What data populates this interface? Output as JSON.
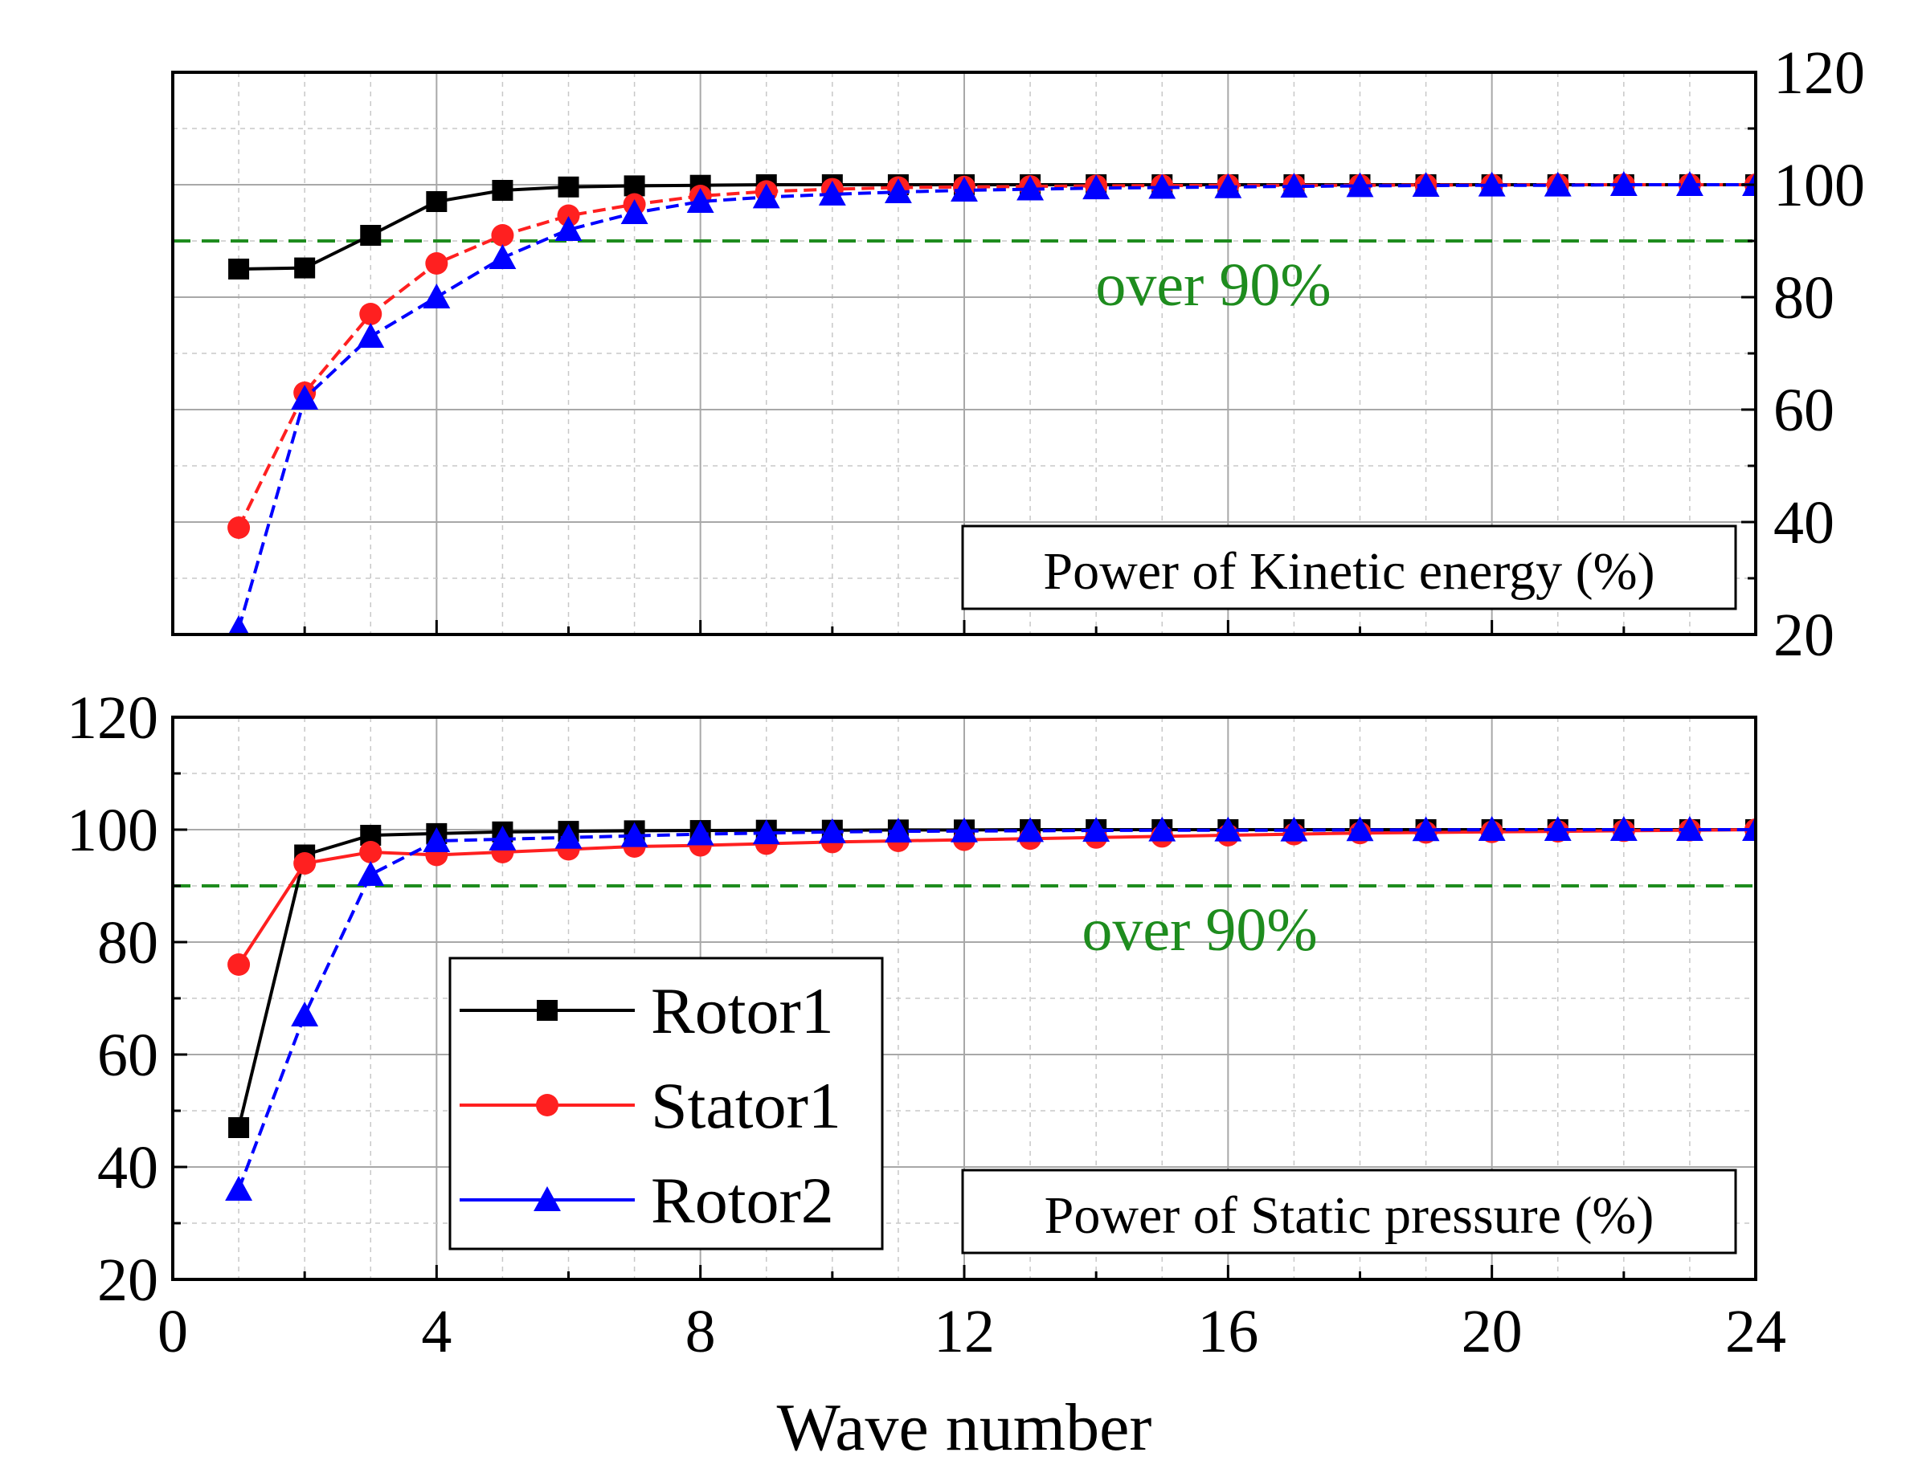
{
  "colors": {
    "rotor1": "#000000",
    "stator1": "#ff2020",
    "rotor2": "#0000ff",
    "threshold": "#1e8c1e"
  },
  "chart_data": [
    {
      "type": "line",
      "panel": "top",
      "title": "",
      "xlabel": "",
      "ylabel": "",
      "label": "Power of Kinetic energy (%)",
      "y_axis_side": "right",
      "xlim": [
        0,
        24
      ],
      "ylim": [
        20,
        120
      ],
      "xticks": [
        0,
        4,
        8,
        12,
        16,
        20,
        24
      ],
      "yticks": [
        20,
        40,
        60,
        80,
        100,
        120
      ],
      "ytick_labels": [
        "20",
        "40",
        "60",
        "80",
        "100",
        "120"
      ],
      "grid": true,
      "threshold": {
        "y": 90,
        "label": "over 90%"
      },
      "x": [
        1,
        2,
        3,
        4,
        5,
        6,
        7,
        8,
        9,
        10,
        11,
        12,
        13,
        14,
        15,
        16,
        17,
        18,
        19,
        20,
        21,
        22,
        23,
        24
      ],
      "series": [
        {
          "name": "Rotor1",
          "marker": "square",
          "values": [
            85,
            85.2,
            91,
            97,
            99,
            99.6,
            99.8,
            99.9,
            100,
            100,
            100,
            100,
            100,
            100,
            100,
            100,
            100,
            100,
            100,
            100,
            100,
            100,
            100,
            100
          ]
        },
        {
          "name": "Stator1",
          "marker": "circle",
          "values": [
            39,
            63,
            77,
            86,
            91,
            94.5,
            96.5,
            98,
            98.8,
            99.2,
            99.5,
            99.6,
            99.7,
            99.8,
            99.85,
            99.9,
            99.9,
            99.9,
            99.95,
            99.95,
            100,
            100,
            100,
            100
          ]
        },
        {
          "name": "Rotor2",
          "marker": "triangle",
          "values": [
            21,
            62,
            73,
            80,
            87,
            92,
            95,
            97,
            97.8,
            98.3,
            98.7,
            99,
            99.2,
            99.4,
            99.5,
            99.6,
            99.7,
            99.8,
            99.85,
            99.9,
            99.9,
            100,
            100,
            100
          ]
        }
      ]
    },
    {
      "type": "line",
      "panel": "bottom",
      "title": "",
      "xlabel": "Wave number",
      "ylabel": "",
      "label": "Power of Static pressure (%)",
      "y_axis_side": "left",
      "xlim": [
        0,
        24
      ],
      "ylim": [
        20,
        120
      ],
      "xticks": [
        0,
        4,
        8,
        12,
        16,
        20,
        24
      ],
      "xtick_labels": [
        "0",
        "4",
        "8",
        "12",
        "16",
        "20",
        "24"
      ],
      "yticks": [
        20,
        40,
        60,
        80,
        100,
        120
      ],
      "ytick_labels": [
        "20",
        "40",
        "60",
        "80",
        "100",
        "120"
      ],
      "grid": true,
      "legend": "lower-left",
      "threshold": {
        "y": 90,
        "label": "over 90%"
      },
      "x": [
        1,
        2,
        3,
        4,
        5,
        6,
        7,
        8,
        9,
        10,
        11,
        12,
        13,
        14,
        15,
        16,
        17,
        18,
        19,
        20,
        21,
        22,
        23,
        24
      ],
      "series": [
        {
          "name": "Rotor1",
          "marker": "square",
          "values": [
            47,
            95.5,
            99,
            99.3,
            99.6,
            99.7,
            99.8,
            99.85,
            99.9,
            99.9,
            99.95,
            99.95,
            100,
            100,
            100,
            100,
            100,
            100,
            100,
            100,
            100,
            100,
            100,
            100
          ]
        },
        {
          "name": "Stator1",
          "marker": "circle",
          "values": [
            76,
            94,
            96,
            95.5,
            96,
            96.5,
            97,
            97.2,
            97.5,
            97.8,
            98,
            98.2,
            98.4,
            98.6,
            98.8,
            99,
            99.2,
            99.4,
            99.5,
            99.6,
            99.7,
            99.8,
            99.9,
            100
          ]
        },
        {
          "name": "Rotor2",
          "marker": "triangle",
          "values": [
            36,
            67,
            92,
            98,
            98.3,
            98.6,
            98.9,
            99.2,
            99.4,
            99.6,
            99.7,
            99.75,
            99.8,
            99.85,
            99.9,
            99.9,
            99.9,
            99.95,
            99.95,
            100,
            100,
            100,
            100,
            100
          ]
        }
      ]
    }
  ]
}
